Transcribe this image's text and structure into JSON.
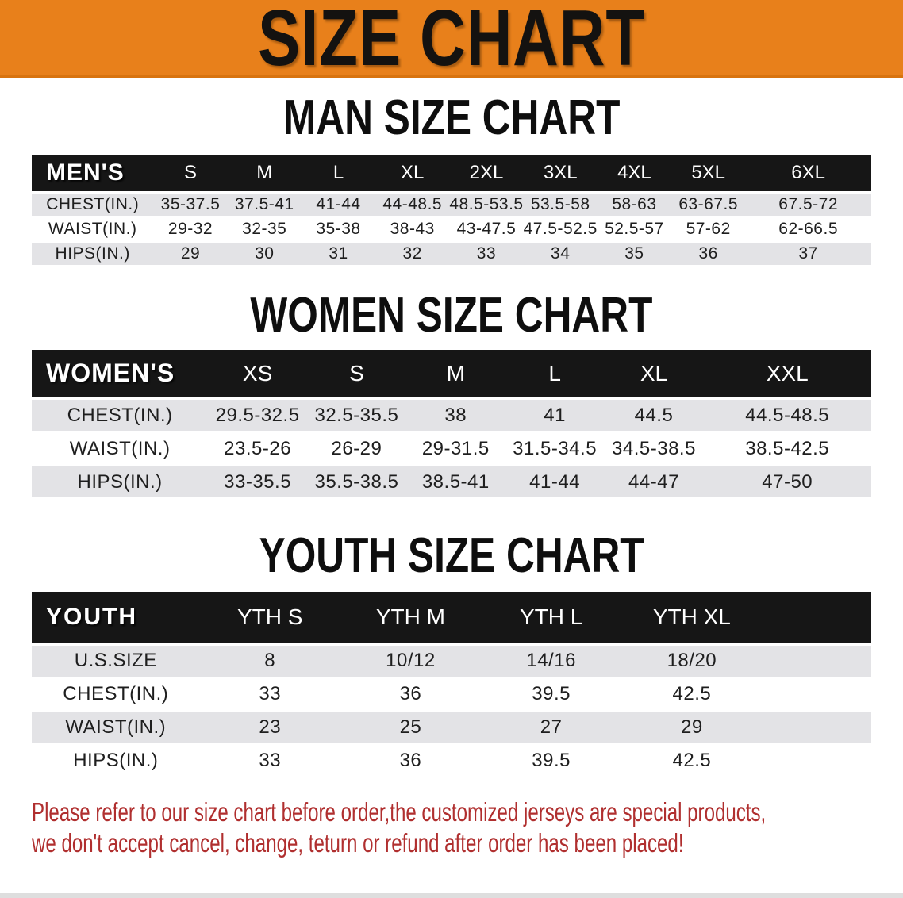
{
  "banner": {
    "title": "SIZE CHART"
  },
  "colors": {
    "banner_bg": "#E8801B",
    "banner_text": "#141210",
    "table_header_bg": "#161616",
    "table_header_text": "#FFFFFF",
    "row_stripe": "#E3E3E6",
    "row_text": "#1E1E1E",
    "disclaimer_text": "#B02F2F"
  },
  "sections": [
    {
      "id": "men",
      "heading": "MAN SIZE CHART",
      "table": {
        "header": [
          "MEN'S",
          "S",
          "M",
          "L",
          "XL",
          "2XL",
          "3XL",
          "4XL",
          "5XL",
          "6XL"
        ],
        "rows": [
          {
            "label": "CHEST(IN.)",
            "values": [
              "35-37.5",
              "37.5-41",
              "41-44",
              "44-48.5",
              "48.5-53.5",
              "53.5-58",
              "58-63",
              "63-67.5",
              "67.5-72"
            ]
          },
          {
            "label": "WAIST(IN.)",
            "values": [
              "29-32",
              "32-35",
              "35-38",
              "38-43",
              "43-47.5",
              "47.5-52.5",
              "52.5-57",
              "57-62",
              "62-66.5"
            ]
          },
          {
            "label": "HIPS(IN.)",
            "values": [
              "29",
              "30",
              "31",
              "32",
              "33",
              "34",
              "35",
              "36",
              "37"
            ]
          }
        ]
      }
    },
    {
      "id": "women",
      "heading": "WOMEN SIZE CHART",
      "table": {
        "header": [
          "WOMEN'S",
          "XS",
          "S",
          "M",
          "L",
          "XL",
          "XXL"
        ],
        "rows": [
          {
            "label": "CHEST(IN.)",
            "values": [
              "29.5-32.5",
              "32.5-35.5",
              "38",
              "41",
              "44.5",
              "44.5-48.5"
            ]
          },
          {
            "label": "WAIST(IN.)",
            "values": [
              "23.5-26",
              "26-29",
              "29-31.5",
              "31.5-34.5",
              "34.5-38.5",
              "38.5-42.5"
            ]
          },
          {
            "label": "HIPS(IN.)",
            "values": [
              "33-35.5",
              "35.5-38.5",
              "38.5-41",
              "41-44",
              "44-47",
              "47-50"
            ]
          }
        ]
      }
    },
    {
      "id": "youth",
      "heading": "YOUTH SIZE CHART",
      "table": {
        "header": [
          "YOUTH",
          "YTH S",
          "YTH M",
          "YTH L",
          "YTH XL",
          ""
        ],
        "rows": [
          {
            "label": "U.S.SIZE",
            "values": [
              "8",
              "10/12",
              "14/16",
              "18/20",
              ""
            ]
          },
          {
            "label": "CHEST(IN.)",
            "values": [
              "33",
              "36",
              "39.5",
              "42.5",
              ""
            ]
          },
          {
            "label": "WAIST(IN.)",
            "values": [
              "23",
              "25",
              "27",
              "29",
              ""
            ]
          },
          {
            "label": "HIPS(IN.)",
            "values": [
              "33",
              "36",
              "39.5",
              "42.5",
              ""
            ]
          }
        ]
      }
    }
  ],
  "disclaimer": {
    "line1": "Please refer to our size chart before order,the customized jerseys are special products,",
    "line2": "we don't accept cancel, change, teturn or refund after order has been placed!"
  }
}
